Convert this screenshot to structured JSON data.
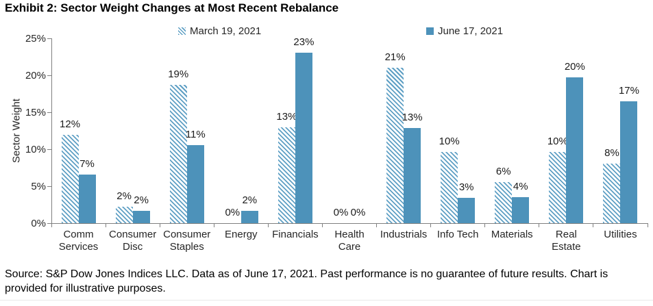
{
  "colors": {
    "march_hatch": "#5e9fc4",
    "june_solid": "#4d92ba",
    "axis": "#7f7f7f",
    "text": "#000000"
  },
  "chart_data": {
    "type": "bar",
    "title": "Exhibit 2: Sector Weight Changes at Most Recent Rebalance",
    "ylabel": "Sector Weight",
    "xlabel": "",
    "ylim": [
      0,
      25
    ],
    "y_ticks": [
      "0%",
      "5%",
      "10%",
      "15%",
      "20%",
      "25%"
    ],
    "grid": false,
    "legend_position": "top",
    "categories": [
      "Comm Services",
      "Consumer Disc",
      "Consumer Staples",
      "Energy",
      "Financials",
      "Health Care",
      "Industrials",
      "Info Tech",
      "Materials",
      "Real Estate",
      "Utilities"
    ],
    "category_lines": [
      [
        "Comm",
        "Services"
      ],
      [
        "Consumer",
        "Disc"
      ],
      [
        "Consumer",
        "Staples"
      ],
      [
        "Energy"
      ],
      [
        "Financials"
      ],
      [
        "Health",
        "Care"
      ],
      [
        "Industrials"
      ],
      [
        "Info Tech"
      ],
      [
        "Materials"
      ],
      [
        "Real",
        "Estate"
      ],
      [
        "Utilities"
      ]
    ],
    "series": [
      {
        "name": "March 19, 2021",
        "style": "hatched",
        "values": [
          11.9,
          2.2,
          18.7,
          0,
          13.0,
          0,
          21.0,
          9.6,
          5.6,
          9.6,
          8.1
        ],
        "labels": [
          "12%",
          "2%",
          "19%",
          "0%",
          "13%",
          "0%",
          "21%",
          "10%",
          "6%",
          "10%",
          "8%"
        ]
      },
      {
        "name": "June 17, 2021",
        "style": "solid",
        "values": [
          6.6,
          1.7,
          10.6,
          1.7,
          23.1,
          0,
          12.9,
          3.4,
          3.5,
          19.7,
          16.5
        ],
        "labels": [
          "7%",
          "2%",
          "11%",
          "2%",
          "23%",
          "0%",
          "13%",
          "3%",
          "4%",
          "20%",
          "17%"
        ]
      }
    ]
  },
  "footer": {
    "lines": [
      "Source: S&P Dow Jones Indices LLC. Data as of June 17, 2021. Past performance is no guarantee of future results. Chart is",
      "provided for illustrative purposes."
    ]
  }
}
